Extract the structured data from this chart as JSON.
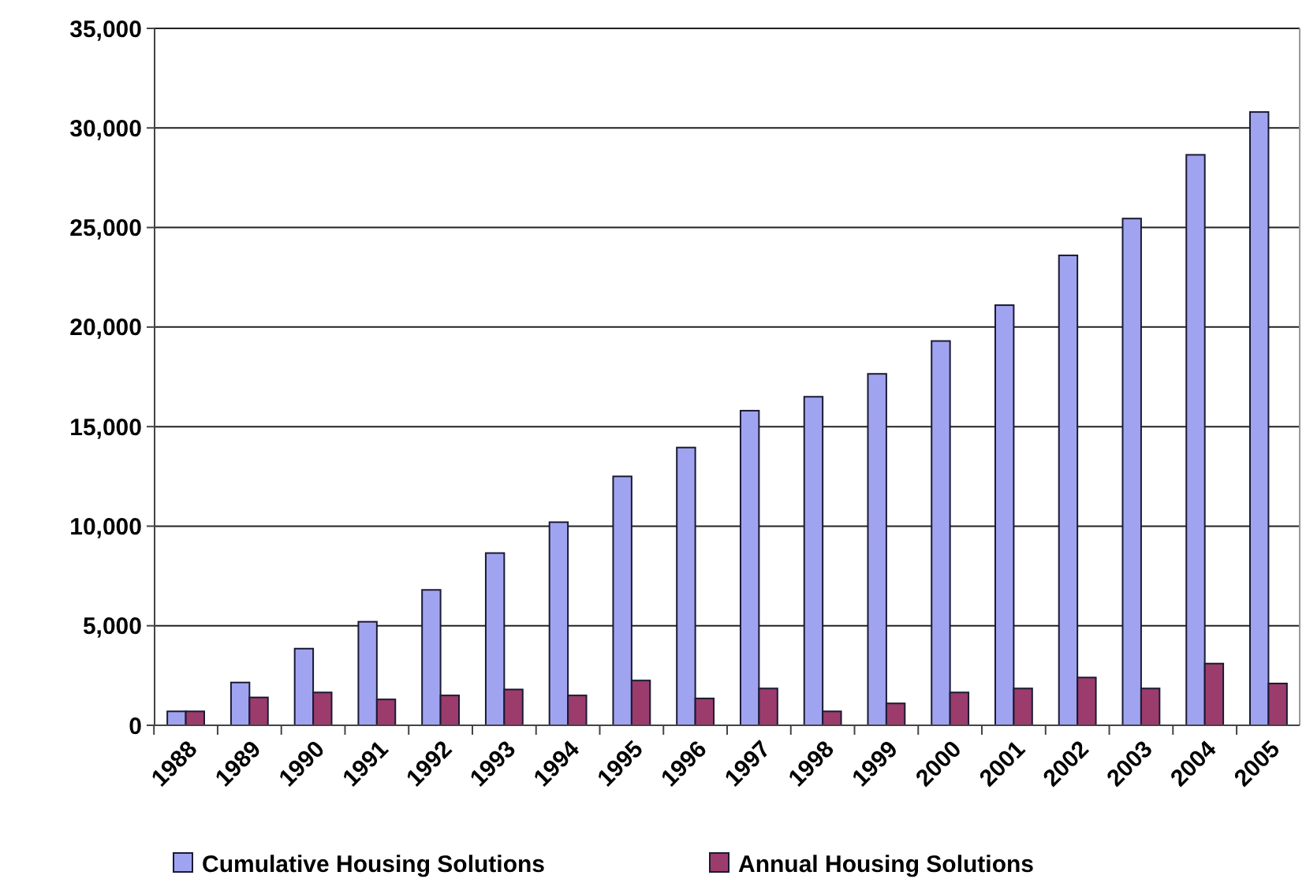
{
  "chart_data": {
    "type": "bar",
    "categories": [
      "1988",
      "1989",
      "1990",
      "1991",
      "1992",
      "1993",
      "1994",
      "1995",
      "1996",
      "1997",
      "1998",
      "1999",
      "2000",
      "2001",
      "2002",
      "2003",
      "2004",
      "2005"
    ],
    "series": [
      {
        "name": "Cumulative Housing Solutions",
        "color": "#a0a4f0",
        "values": [
          700,
          2150,
          3850,
          5200,
          6800,
          8650,
          10200,
          12500,
          13950,
          15800,
          16500,
          17650,
          19300,
          21100,
          23600,
          25450,
          28650,
          30800
        ]
      },
      {
        "name": "Annual Housing Solutions",
        "color": "#9c3c6c",
        "values": [
          700,
          1400,
          1650,
          1300,
          1500,
          1800,
          1500,
          2250,
          1350,
          1850,
          700,
          1100,
          1650,
          1850,
          2400,
          1850,
          3100,
          2100
        ]
      }
    ],
    "ylim": [
      0,
      35000
    ],
    "yticks": [
      {
        "value": 0,
        "label": "0"
      },
      {
        "value": 5000,
        "label": "5,000"
      },
      {
        "value": 10000,
        "label": "10,000"
      },
      {
        "value": 15000,
        "label": "15,000"
      },
      {
        "value": 20000,
        "label": "20,000"
      },
      {
        "value": 25000,
        "label": "25,000"
      },
      {
        "value": 30000,
        "label": "30,000"
      },
      {
        "value": 35000,
        "label": "35,000"
      }
    ],
    "grid": "y",
    "legend": "bottom"
  }
}
